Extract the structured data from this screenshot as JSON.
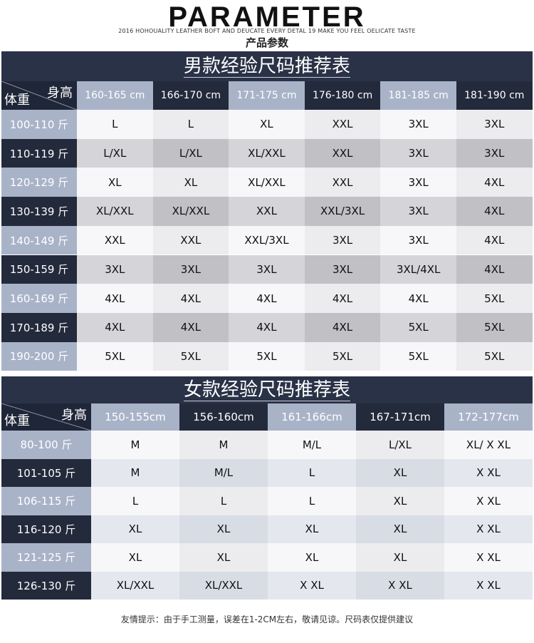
{
  "header": {
    "brand": "PARAMETER",
    "tagline": "2016 HOHOUALITY LEATHER BOFT AND DEUCATE EVERY DETAL 19 MAKE YOU FEEL OELICATE TASTE",
    "subtitle": "产品参数"
  },
  "men": {
    "title": "男款经验尺码推荐表",
    "corner_height": "身高",
    "corner_weight": "体重",
    "columns": [
      "160-165 cm",
      "166-170 cm",
      "171-175 cm",
      "176-180 cm",
      "181-185 cm",
      "181-190 cm"
    ],
    "rows": [
      {
        "weight": "100-110 斤",
        "sizes": [
          "L",
          "L",
          "XL",
          "XXL",
          "3XL",
          "3XL"
        ]
      },
      {
        "weight": "110-119 斤",
        "sizes": [
          "L/XL",
          "L/XL",
          "XL/XXL",
          "XXL",
          "3XL",
          "3XL"
        ]
      },
      {
        "weight": "120-129 斤",
        "sizes": [
          "XL",
          "XL",
          "XL/XXL",
          "XXL",
          "3XL",
          "4XL"
        ]
      },
      {
        "weight": "130-139 斤",
        "sizes": [
          "XL/XXL",
          "XL/XXL",
          "XXL",
          "XXL/3XL",
          "3XL",
          "4XL"
        ]
      },
      {
        "weight": "140-149 斤",
        "sizes": [
          "XXL",
          "XXL",
          "XXL/3XL",
          "3XL",
          "3XL",
          "4XL"
        ]
      },
      {
        "weight": "150-159 斤",
        "sizes": [
          "3XL",
          "3XL",
          "3XL",
          "3XL",
          "3XL/4XL",
          "4XL"
        ]
      },
      {
        "weight": "160-169 斤",
        "sizes": [
          "4XL",
          "4XL",
          "4XL",
          "4XL",
          "4XL",
          "5XL"
        ]
      },
      {
        "weight": "170-189 斤",
        "sizes": [
          "4XL",
          "4XL",
          "4XL",
          "4XL",
          "5XL",
          "5XL"
        ]
      },
      {
        "weight": "190-200 斤",
        "sizes": [
          "5XL",
          "5XL",
          "5XL",
          "5XL",
          "5XL",
          "5XL"
        ]
      }
    ]
  },
  "women": {
    "title": "女款经验尺码推荐表",
    "corner_height": "身高",
    "corner_weight": "体重",
    "columns": [
      "150-155cm",
      "156-160cm",
      "161-166cm",
      "167-171cm",
      "172-177cm"
    ],
    "rows": [
      {
        "weight": "80-100 斤",
        "sizes": [
          "M",
          "M",
          "M/L",
          "L/XL",
          "XL/ X XL"
        ]
      },
      {
        "weight": "101-105 斤",
        "sizes": [
          "M",
          "M/L",
          "L",
          "XL",
          "X XL"
        ]
      },
      {
        "weight": "106-115 斤",
        "sizes": [
          "L",
          "L",
          "L",
          "XL",
          "X XL"
        ]
      },
      {
        "weight": "116-120 斤",
        "sizes": [
          "XL",
          "XL",
          "XL",
          "XL",
          "X XL"
        ]
      },
      {
        "weight": "121-125 斤",
        "sizes": [
          "XL",
          "XL",
          "XL",
          "XL",
          "X XL"
        ]
      },
      {
        "weight": "126-130 斤",
        "sizes": [
          "XL/XXL",
          "XL/XXL",
          "X XL",
          "X XL",
          "X XL"
        ]
      }
    ]
  },
  "footer": {
    "note": "友情提示：由于手工测量，误差在1-2CM左右，敬请见谅。尺码表仅提供建议"
  },
  "colors": {
    "navy": "#232a3c",
    "slate": "#a9b3c8",
    "light_slate": "#c4ccdb",
    "row_light": "#ececef",
    "row_mid": "#d5d5d9",
    "row_dark": "#c0c0c5",
    "row_white": "#f7f7f9"
  }
}
